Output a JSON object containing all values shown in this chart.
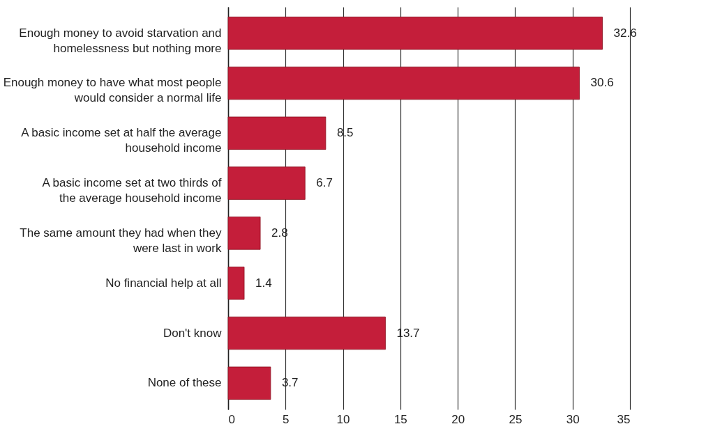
{
  "chart_data": {
    "type": "bar",
    "orientation": "horizontal",
    "categories": [
      "Enough money to avoid starvation and homelessness but nothing more",
      "Enough money to have what most people would consider a normal life",
      "A basic income set at half the average household income",
      "A basic income set at two thirds of the average household income",
      "The same amount they had when they were last in work",
      "No financial help at all",
      "Don't know",
      "None of these"
    ],
    "values": [
      32.6,
      30.6,
      8.5,
      6.7,
      2.8,
      1.4,
      13.7,
      3.7
    ],
    "color": "#c41e3a",
    "data_labels": true,
    "grid": "x",
    "xlim": [
      0,
      35
    ],
    "xticks": [
      0,
      5,
      10,
      15,
      20,
      25,
      30,
      35
    ]
  }
}
